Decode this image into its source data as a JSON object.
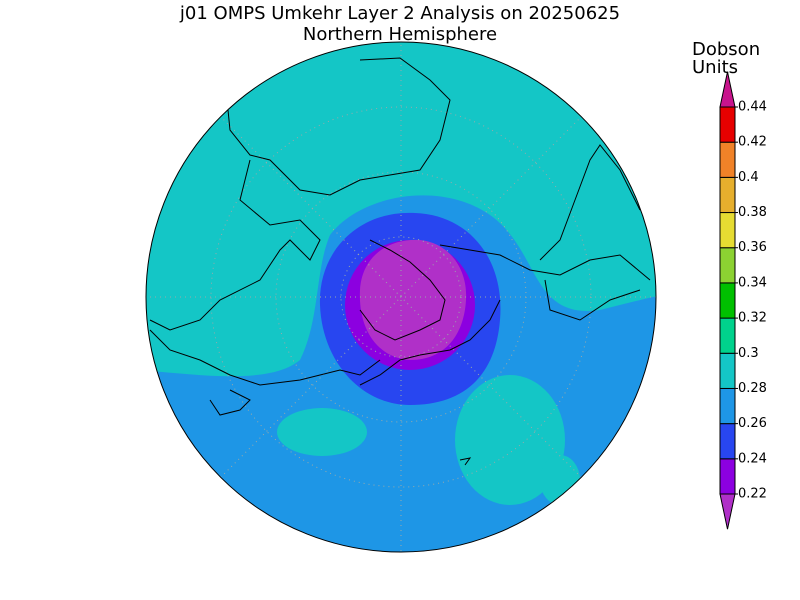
{
  "title": "j01 OMPS Umkehr Layer 2 Analysis on 20250625",
  "subtitle": "Northern Hemisphere",
  "colorbar": {
    "label_lines": [
      "Dobson",
      "Units"
    ],
    "ticks": [
      0.22,
      0.24,
      0.26,
      0.28,
      0.3,
      0.32,
      0.34,
      0.36,
      0.38,
      0.4,
      0.42,
      0.44
    ],
    "colors": [
      "#b030c8",
      "#8c00e0",
      "#2846f0",
      "#1e96e6",
      "#14c6c6",
      "#00d28c",
      "#00c000",
      "#8cd232",
      "#e6dc32",
      "#e6af2d",
      "#f08228",
      "#e60000",
      "#c8148c"
    ]
  }
}
